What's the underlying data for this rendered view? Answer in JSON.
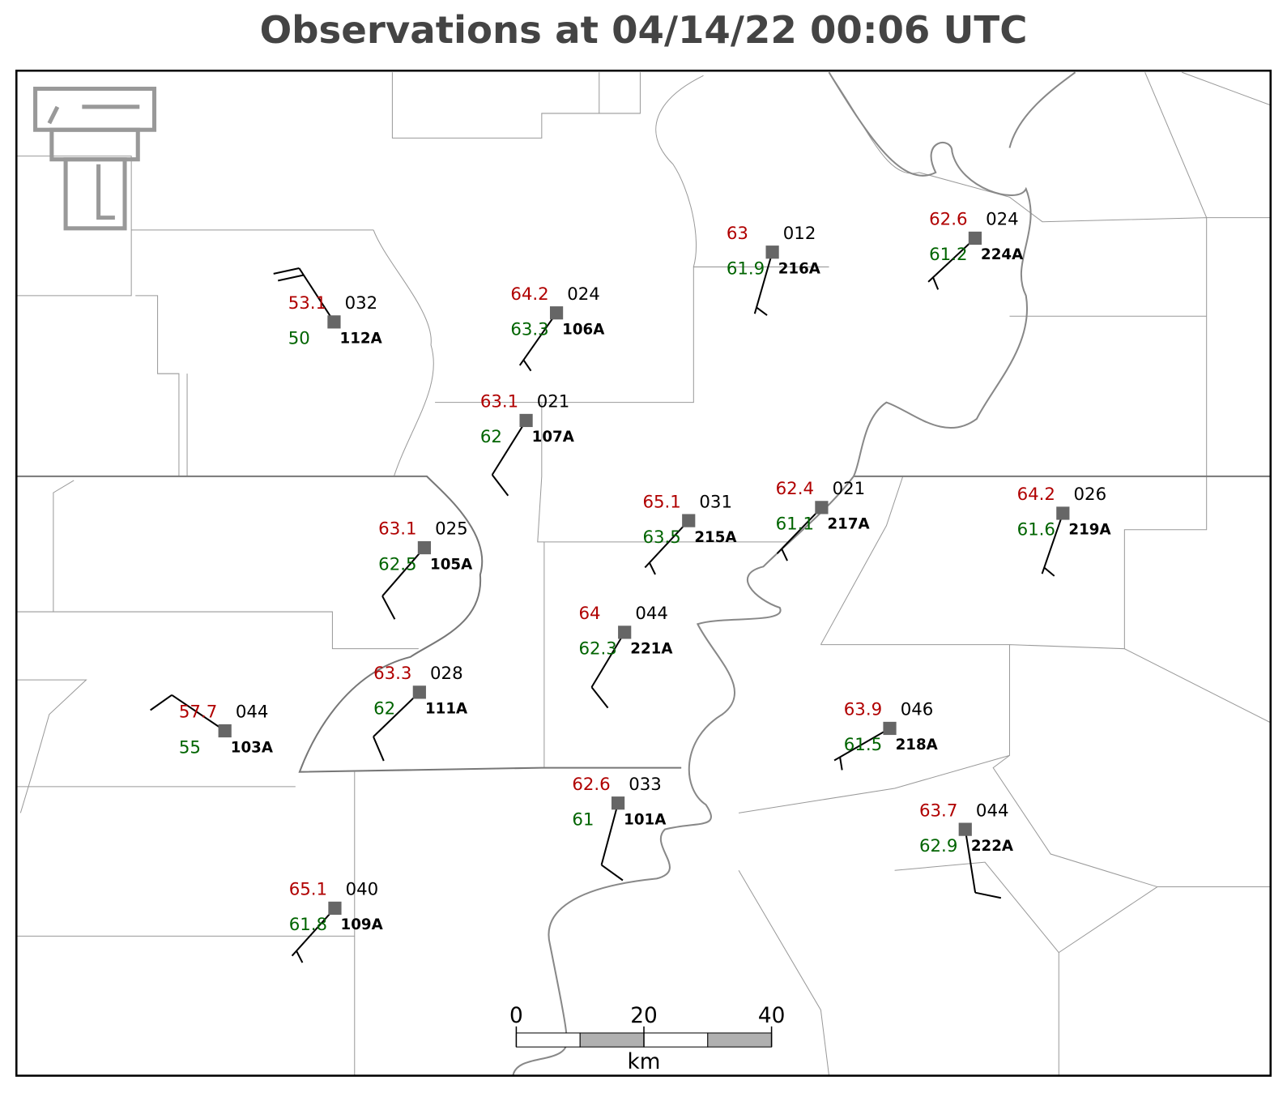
{
  "title": "Observations at 04/14/22 00:06 UTC",
  "stations": [
    {
      "id": "112A",
      "temperature": 53.1,
      "dewpoint": 50.0,
      "pressure": "032",
      "wind_dir": 327,
      "wind_speed": 20
    },
    {
      "id": "106A",
      "temperature": 64.2,
      "dewpoint": 63.3,
      "pressure": "024",
      "wind_dir": 215,
      "wind_speed": 5
    },
    {
      "id": "107A",
      "temperature": 63.1,
      "dewpoint": 62.0,
      "pressure": "021",
      "wind_dir": 212,
      "wind_speed": 10
    },
    {
      "id": "216A",
      "temperature": 63.0,
      "dewpoint": 61.9,
      "pressure": "012",
      "wind_dir": 196,
      "wind_speed": 5
    },
    {
      "id": "224A",
      "temperature": 62.6,
      "dewpoint": 61.2,
      "pressure": "024",
      "wind_dir": 227,
      "wind_speed": 5
    },
    {
      "id": "105A",
      "temperature": 63.1,
      "dewpoint": 62.5,
      "pressure": "025",
      "wind_dir": 221,
      "wind_speed": 10
    },
    {
      "id": "215A",
      "temperature": 65.1,
      "dewpoint": 63.5,
      "pressure": "031",
      "wind_dir": 223,
      "wind_speed": 5
    },
    {
      "id": "217A",
      "temperature": 62.4,
      "dewpoint": 61.1,
      "pressure": "021",
      "wind_dir": 224,
      "wind_speed": 5
    },
    {
      "id": "219A",
      "temperature": 64.2,
      "dewpoint": 61.6,
      "pressure": "026",
      "wind_dir": 199,
      "wind_speed": 5
    },
    {
      "id": "221A",
      "temperature": 64.0,
      "dewpoint": 62.3,
      "pressure": "044",
      "wind_dir": 211,
      "wind_speed": 10
    },
    {
      "id": "103A",
      "temperature": 57.7,
      "dewpoint": 55.0,
      "pressure": "044",
      "wind_dir": 304,
      "wind_speed": 10
    },
    {
      "id": "111A",
      "temperature": 63.3,
      "dewpoint": 62.0,
      "pressure": "028",
      "wind_dir": 226,
      "wind_speed": 10
    },
    {
      "id": "218A",
      "temperature": 63.9,
      "dewpoint": 61.5,
      "pressure": "046",
      "wind_dir": 240,
      "wind_speed": 5
    },
    {
      "id": "101A",
      "temperature": 62.6,
      "dewpoint": 61.0,
      "pressure": "033",
      "wind_dir": 195,
      "wind_speed": 10
    },
    {
      "id": "222A",
      "temperature": 63.7,
      "dewpoint": 62.9,
      "pressure": "044",
      "wind_dir": 171,
      "wind_speed": 10
    },
    {
      "id": "109A",
      "temperature": 65.1,
      "dewpoint": 61.8,
      "pressure": "040",
      "wind_dir": 222,
      "wind_speed": 5
    }
  ],
  "scale_bar": {
    "ticks": [
      0,
      20,
      40
    ],
    "unit": "km"
  }
}
